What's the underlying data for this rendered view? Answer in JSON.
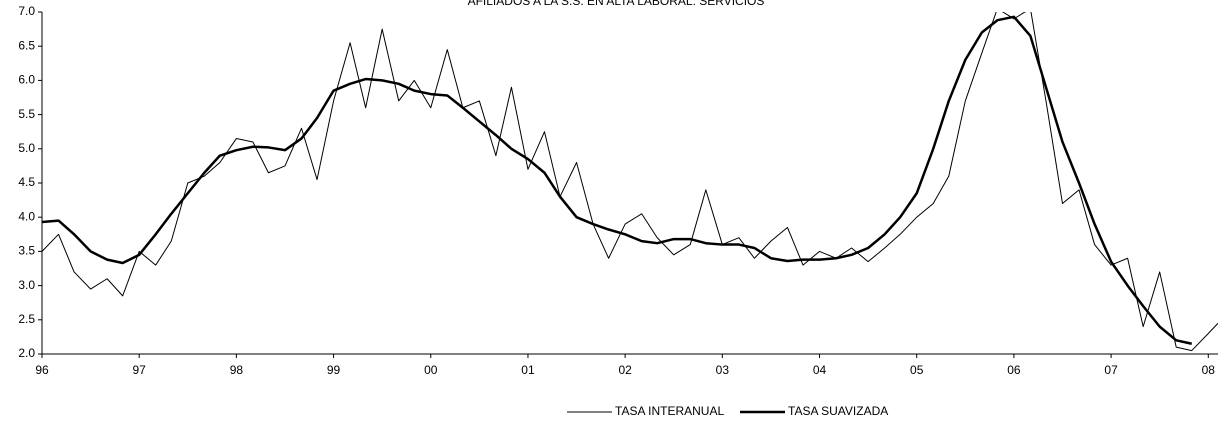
{
  "chart_data": {
    "type": "line",
    "title": "AFILIADOS A LA S.S. EN ALTA LABORAL: SERVICIOS",
    "x": [
      1996.0,
      1996.17,
      1996.33,
      1996.5,
      1996.67,
      1996.83,
      1997.0,
      1997.17,
      1997.33,
      1997.5,
      1997.67,
      1997.83,
      1998.0,
      1998.17,
      1998.33,
      1998.5,
      1998.67,
      1998.83,
      1999.0,
      1999.17,
      1999.33,
      1999.5,
      1999.67,
      1999.83,
      2000.0,
      2000.17,
      2000.33,
      2000.5,
      2000.67,
      2000.83,
      2001.0,
      2001.17,
      2001.33,
      2001.5,
      2001.67,
      2001.83,
      2002.0,
      2002.17,
      2002.33,
      2002.5,
      2002.67,
      2002.83,
      2003.0,
      2003.17,
      2003.33,
      2003.5,
      2003.67,
      2003.83,
      2004.0,
      2004.17,
      2004.33,
      2004.5,
      2004.67,
      2004.83,
      2005.0,
      2005.17,
      2005.33,
      2005.5,
      2005.67,
      2005.83,
      2006.0,
      2006.17,
      2006.33,
      2006.5,
      2006.67,
      2006.83,
      2007.0,
      2007.17,
      2007.33,
      2007.5,
      2007.67,
      2007.83,
      2008.0,
      2008.1
    ],
    "series": [
      {
        "name": "TASA INTERANUAL",
        "color": "#000000",
        "width": 1,
        "values": [
          3.5,
          3.75,
          3.2,
          2.95,
          3.1,
          2.85,
          3.5,
          3.3,
          3.65,
          4.5,
          4.6,
          4.8,
          5.15,
          5.1,
          4.65,
          4.75,
          5.3,
          4.55,
          5.7,
          6.55,
          5.6,
          6.75,
          5.7,
          6.0,
          5.6,
          6.45,
          5.6,
          5.7,
          4.9,
          5.9,
          4.7,
          5.25,
          4.3,
          4.8,
          3.9,
          3.4,
          3.9,
          4.05,
          3.7,
          3.45,
          3.6,
          4.4,
          3.6,
          3.7,
          3.4,
          3.65,
          3.85,
          3.3,
          3.5,
          3.4,
          3.55,
          3.35,
          3.55,
          3.75,
          4.0,
          4.2,
          4.6,
          5.7,
          6.4,
          7.05,
          6.9,
          7.05,
          5.7,
          4.2,
          4.4,
          3.6,
          3.3,
          3.4,
          2.4,
          3.2,
          2.1,
          2.05,
          2.3,
          2.45
        ]
      },
      {
        "name": "TASA SUAVIZADA",
        "color": "#000000",
        "width": 2.5,
        "values": [
          3.93,
          3.95,
          3.75,
          3.5,
          3.38,
          3.33,
          3.45,
          3.75,
          4.05,
          4.35,
          4.65,
          4.9,
          4.98,
          5.03,
          5.02,
          4.98,
          5.15,
          5.45,
          5.85,
          5.95,
          6.02,
          6.0,
          5.95,
          5.85,
          5.8,
          5.78,
          5.6,
          5.4,
          5.2,
          5.0,
          4.85,
          4.65,
          4.3,
          4.0,
          3.9,
          3.82,
          3.75,
          3.65,
          3.62,
          3.68,
          3.68,
          3.62,
          3.6,
          3.6,
          3.55,
          3.4,
          3.36,
          3.38,
          3.38,
          3.4,
          3.45,
          3.55,
          3.75,
          4.0,
          4.35,
          5.0,
          5.7,
          6.3,
          6.7,
          6.88,
          6.93,
          6.65,
          5.9,
          5.1,
          4.5,
          3.9,
          3.35,
          3.0,
          2.7,
          2.4,
          2.2,
          2.15,
          null,
          null
        ]
      }
    ],
    "xlim": [
      1996,
      2008.1
    ],
    "xticks": [
      {
        "value": 1996,
        "label": "96"
      },
      {
        "value": 1997,
        "label": "97"
      },
      {
        "value": 1998,
        "label": "98"
      },
      {
        "value": 1999,
        "label": "99"
      },
      {
        "value": 2000,
        "label": "00"
      },
      {
        "value": 2001,
        "label": "01"
      },
      {
        "value": 2002,
        "label": "02"
      },
      {
        "value": 2003,
        "label": "03"
      },
      {
        "value": 2004,
        "label": "04"
      },
      {
        "value": 2005,
        "label": "05"
      },
      {
        "value": 2006,
        "label": "06"
      },
      {
        "value": 2007,
        "label": "07"
      },
      {
        "value": 2008,
        "label": "08"
      }
    ],
    "ylim": [
      2,
      7
    ],
    "yticks": [
      {
        "value": 2,
        "label": "2.0"
      },
      2.5,
      {
        "value": 3,
        "label": "3.0"
      },
      3.5,
      {
        "value": 4,
        "label": "4.0"
      },
      4.5,
      {
        "value": 5,
        "label": "5.0"
      },
      5.5,
      {
        "value": 6,
        "label": "6.0"
      },
      6.5,
      {
        "value": 7,
        "label": "7.0"
      }
    ],
    "grid": false,
    "legend": "bottom"
  }
}
